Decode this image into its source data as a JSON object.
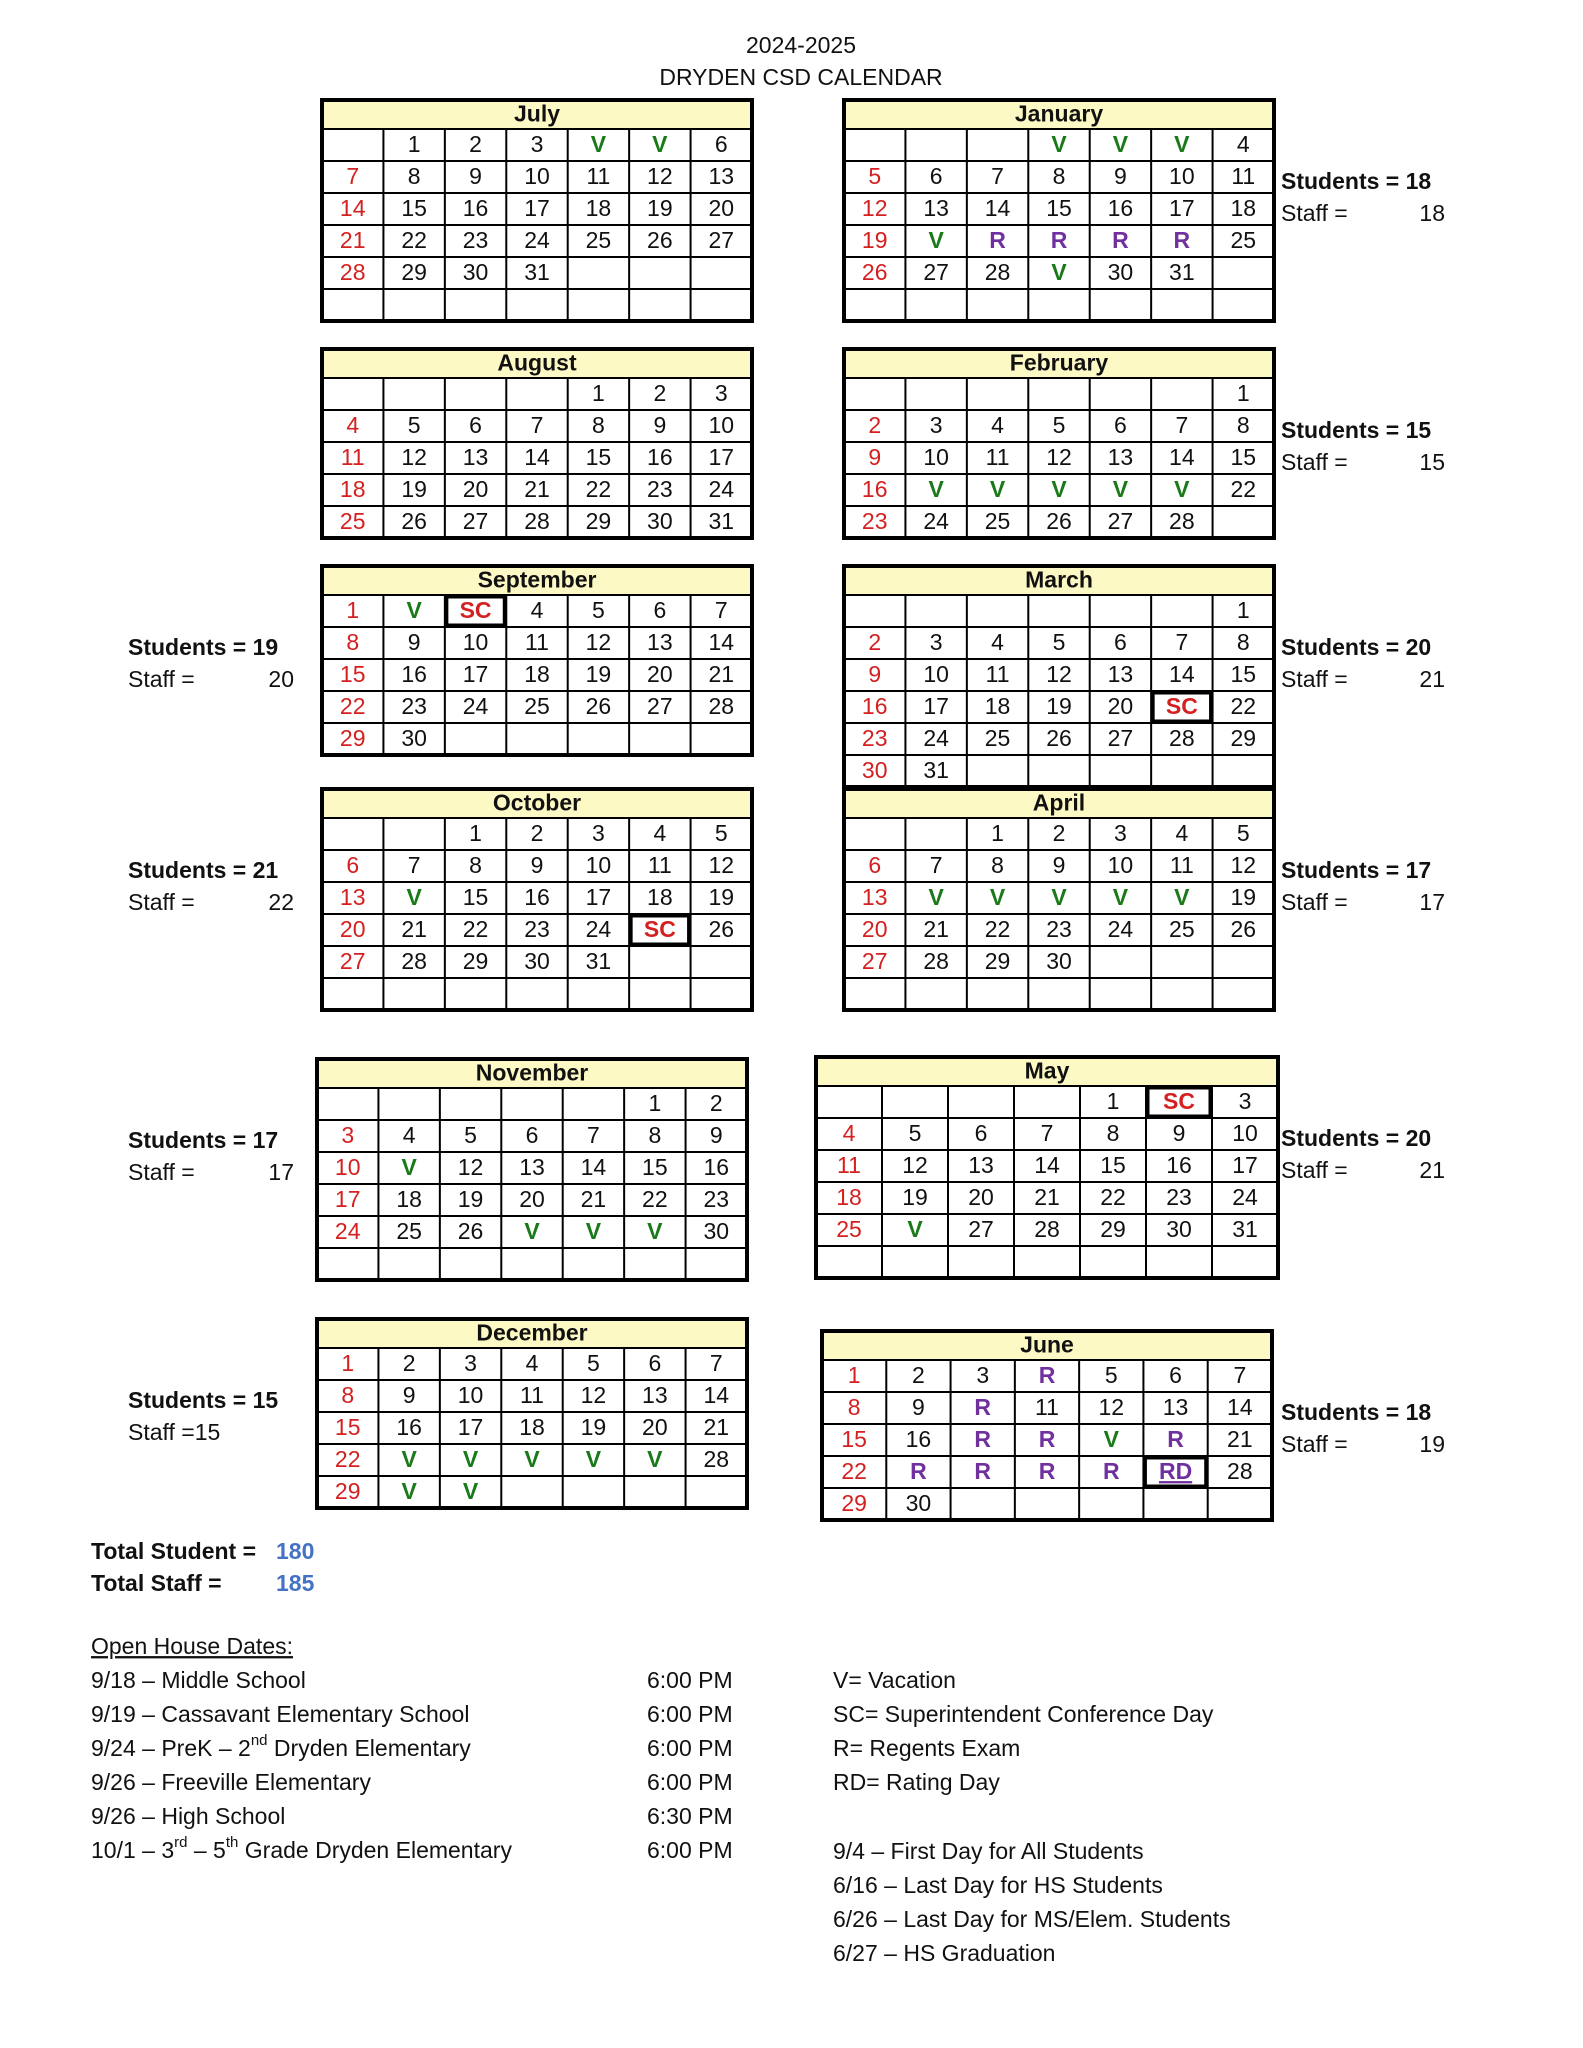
{
  "header": {
    "year": "2024-2025",
    "title": "DRYDEN CSD CALENDAR"
  },
  "months": [
    {
      "name": "July",
      "weeks": [
        [
          null,
          "1",
          "2",
          "3",
          "V",
          "V",
          "6"
        ],
        [
          "7",
          "8",
          "9",
          "10",
          "11",
          "12",
          "13"
        ],
        [
          "14",
          "15",
          "16",
          "17",
          "18",
          "19",
          "20"
        ],
        [
          "21",
          "22",
          "23",
          "24",
          "25",
          "26",
          "27"
        ],
        [
          "28",
          "29",
          "30",
          "31",
          null,
          null,
          null
        ],
        [
          null,
          null,
          null,
          null,
          null,
          null,
          null
        ]
      ]
    },
    {
      "name": "August",
      "weeks": [
        [
          null,
          null,
          null,
          null,
          "1",
          "2",
          "3"
        ],
        [
          "4",
          "5",
          "6",
          "7",
          "8",
          "9",
          "10"
        ],
        [
          "11",
          "12",
          "13",
          "14",
          "15",
          "16",
          "17"
        ],
        [
          "18",
          "19",
          "20",
          "21",
          "22",
          "23",
          "24"
        ],
        [
          "25",
          "26",
          "27",
          "28",
          "29",
          "30",
          "31"
        ]
      ]
    },
    {
      "name": "September",
      "weeks": [
        [
          "1",
          "V",
          "SC",
          "4",
          "5",
          "6",
          "7"
        ],
        [
          "8",
          "9",
          "10",
          "11",
          "12",
          "13",
          "14"
        ],
        [
          "15",
          "16",
          "17",
          "18",
          "19",
          "20",
          "21"
        ],
        [
          "22",
          "23",
          "24",
          "25",
          "26",
          "27",
          "28"
        ],
        [
          "29",
          "30",
          null,
          null,
          null,
          null,
          null
        ]
      ],
      "students": "Students = 19",
      "staff": "Staff =",
      "staff_count": "20"
    },
    {
      "name": "October",
      "weeks": [
        [
          null,
          null,
          "1",
          "2",
          "3",
          "4",
          "5"
        ],
        [
          "6",
          "7",
          "8",
          "9",
          "10",
          "11",
          "12"
        ],
        [
          "13",
          "V",
          "15",
          "16",
          "17",
          "18",
          "19"
        ],
        [
          "20",
          "21",
          "22",
          "23",
          "24",
          "SC",
          "26"
        ],
        [
          "27",
          "28",
          "29",
          "30",
          "31",
          null,
          null
        ],
        [
          null,
          null,
          null,
          null,
          null,
          null,
          null
        ]
      ],
      "students": "Students = 21",
      "staff": "Staff =",
      "staff_count": "22"
    },
    {
      "name": "November",
      "weeks": [
        [
          null,
          null,
          null,
          null,
          null,
          "1",
          "2"
        ],
        [
          "3",
          "4",
          "5",
          "6",
          "7",
          "8",
          "9"
        ],
        [
          "10",
          "V",
          "12",
          "13",
          "14",
          "15",
          "16"
        ],
        [
          "17",
          "18",
          "19",
          "20",
          "21",
          "22",
          "23"
        ],
        [
          "24",
          "25",
          "26",
          "V",
          "V",
          "V",
          "30"
        ],
        [
          null,
          null,
          null,
          null,
          null,
          null,
          null
        ]
      ],
      "students": "Students = 17",
      "staff": "Staff =",
      "staff_count": "17"
    },
    {
      "name": "December",
      "weeks": [
        [
          "1",
          "2",
          "3",
          "4",
          "5",
          "6",
          "7"
        ],
        [
          "8",
          "9",
          "10",
          "11",
          "12",
          "13",
          "14"
        ],
        [
          "15",
          "16",
          "17",
          "18",
          "19",
          "20",
          "21"
        ],
        [
          "22",
          "V",
          "V",
          "V",
          "V",
          "V",
          "28"
        ],
        [
          "29",
          "V",
          "V",
          null,
          null,
          null,
          null
        ]
      ],
      "students": "Students = 15",
      "staff": "Staff =15"
    },
    {
      "name": "January",
      "weeks": [
        [
          null,
          null,
          null,
          "V",
          "V",
          "V",
          "4"
        ],
        [
          "5",
          "6",
          "7",
          "8",
          "9",
          "10",
          "11"
        ],
        [
          "12",
          "13",
          "14",
          "15",
          "16",
          "17",
          "18"
        ],
        [
          "19",
          "V",
          "R",
          "R",
          "R",
          "R",
          "25"
        ],
        [
          "26",
          "27",
          "28",
          "V",
          "30",
          "31",
          null
        ],
        [
          null,
          null,
          null,
          null,
          null,
          null,
          null
        ]
      ],
      "students": "Students = 18",
      "staff": "Staff =",
      "staff_count": "18"
    },
    {
      "name": "February",
      "weeks": [
        [
          null,
          null,
          null,
          null,
          null,
          null,
          "1"
        ],
        [
          "2",
          "3",
          "4",
          "5",
          "6",
          "7",
          "8"
        ],
        [
          "9",
          "10",
          "11",
          "12",
          "13",
          "14",
          "15"
        ],
        [
          "16",
          "V",
          "V",
          "V",
          "V",
          "V",
          "22"
        ],
        [
          "23",
          "24",
          "25",
          "26",
          "27",
          "28",
          null
        ]
      ],
      "students": "Students = 15",
      "staff": "Staff =",
      "staff_count": "15"
    },
    {
      "name": "March",
      "weeks": [
        [
          null,
          null,
          null,
          null,
          null,
          null,
          "1"
        ],
        [
          "2",
          "3",
          "4",
          "5",
          "6",
          "7",
          "8"
        ],
        [
          "9",
          "10",
          "11",
          "12",
          "13",
          "14",
          "15"
        ],
        [
          "16",
          "17",
          "18",
          "19",
          "20",
          "SC",
          "22"
        ],
        [
          "23",
          "24",
          "25",
          "26",
          "27",
          "28",
          "29"
        ],
        [
          "30",
          "31",
          null,
          null,
          null,
          null,
          null
        ]
      ],
      "students": "Students = 20",
      "staff": "Staff =",
      "staff_count": "21"
    },
    {
      "name": "April",
      "weeks": [
        [
          null,
          null,
          "1",
          "2",
          "3",
          "4",
          "5"
        ],
        [
          "6",
          "7",
          "8",
          "9",
          "10",
          "11",
          "12"
        ],
        [
          "13",
          "V",
          "V",
          "V",
          "V",
          "V",
          "19"
        ],
        [
          "20",
          "21",
          "22",
          "23",
          "24",
          "25",
          "26"
        ],
        [
          "27",
          "28",
          "29",
          "30",
          null,
          null,
          null
        ],
        [
          null,
          null,
          null,
          null,
          null,
          null,
          null
        ]
      ],
      "students": "Students = 17",
      "staff": "Staff =",
      "staff_count": "17"
    },
    {
      "name": "May",
      "weeks": [
        [
          null,
          null,
          null,
          null,
          "1",
          "SC",
          "3"
        ],
        [
          "4",
          "5",
          "6",
          "7",
          "8",
          "9",
          "10"
        ],
        [
          "11",
          "12",
          "13",
          "14",
          "15",
          "16",
          "17"
        ],
        [
          "18",
          "19",
          "20",
          "21",
          "22",
          "23",
          "24"
        ],
        [
          "25",
          "V",
          "27",
          "28",
          "29",
          "30",
          "31"
        ],
        [
          null,
          null,
          null,
          null,
          null,
          null,
          null
        ]
      ],
      "students": "Students = 20",
      "staff": "Staff =",
      "staff_count": "21"
    },
    {
      "name": "June",
      "weeks": [
        [
          "1",
          "2",
          "3",
          "R",
          "5",
          "6",
          "7"
        ],
        [
          "8",
          "9",
          "R",
          "11",
          "12",
          "13",
          "14"
        ],
        [
          "15",
          "16",
          "R",
          "R",
          "V",
          "R",
          "21"
        ],
        [
          "22",
          "R",
          "R",
          "R",
          "R",
          "RD",
          "28"
        ],
        [
          "29",
          "30",
          null,
          null,
          null,
          null,
          null
        ]
      ],
      "students": "Students = 18",
      "staff": "Staff =",
      "staff_count": "19"
    }
  ],
  "totals": {
    "student_label": "Total Student =",
    "student": "180",
    "staff_label": "Total Staff =",
    "staff": "185"
  },
  "open_house": {
    "title": "Open House Dates:",
    "items": [
      {
        "parts": [
          "9/18 – Middle School"
        ],
        "time": "6:00 PM"
      },
      {
        "parts": [
          "9/19 – Cassavant Elementary School"
        ],
        "time": "6:00 PM"
      },
      {
        "parts": [
          "9/24 – PreK – 2",
          "nd",
          " Dryden Elementary"
        ],
        "time": "6:00 PM"
      },
      {
        "parts": [
          "9/26 – Freeville Elementary"
        ],
        "time": "6:00 PM"
      },
      {
        "parts": [
          "9/26 – High School"
        ],
        "time": "6:30 PM"
      },
      {
        "parts": [
          "10/1 – 3",
          "rd",
          " – 5",
          "th",
          " Grade Dryden Elementary"
        ],
        "time": "6:00 PM"
      }
    ]
  },
  "legend": [
    "V= Vacation",
    "SC= Superintendent Conference Day",
    "R= Regents Exam",
    "RD= Rating Day"
  ],
  "key_dates": [
    "9/4 – First Day for All Students",
    "6/16 – Last Day for HS Students",
    "6/26 – Last Day for MS/Elem. Students",
    "6/27 – HS Graduation"
  ]
}
